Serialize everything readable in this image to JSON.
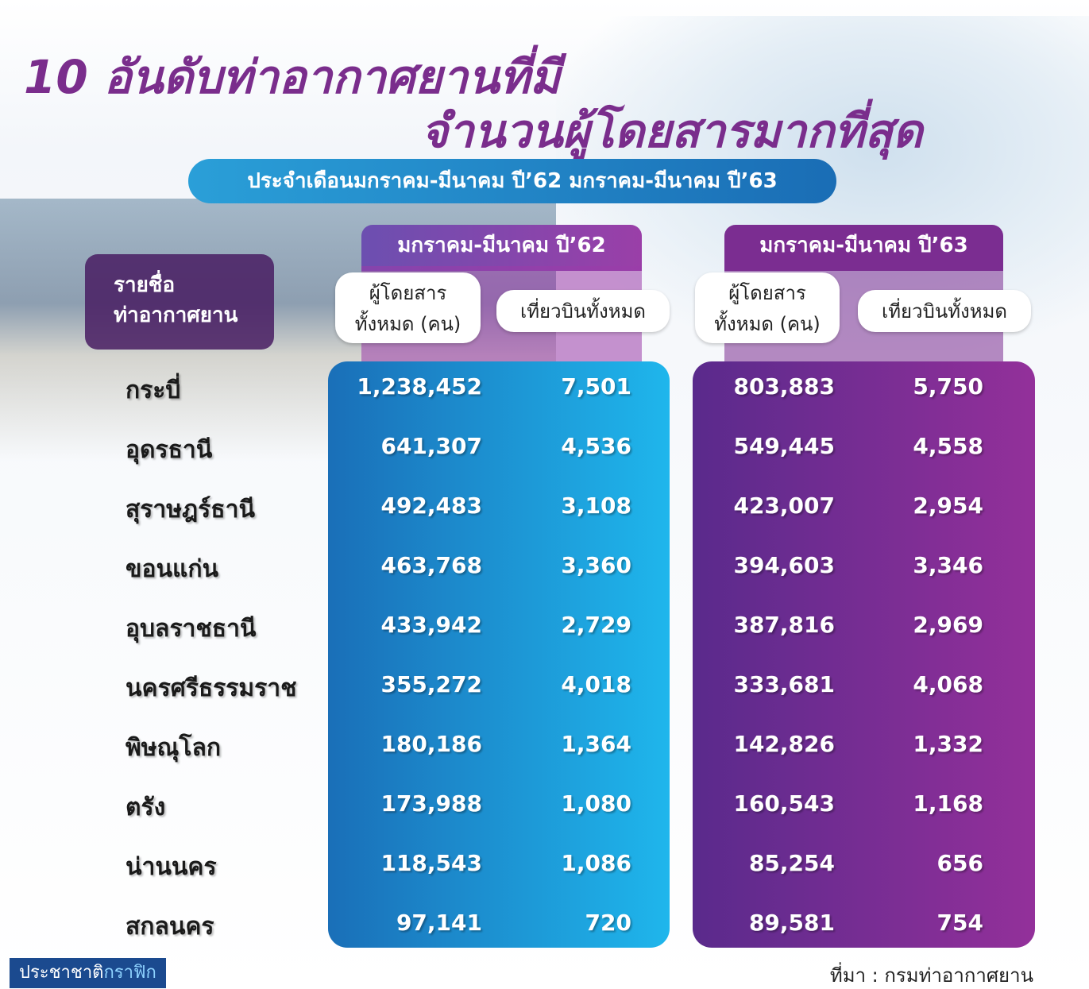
{
  "header": {
    "title_lines": [
      "10 อันดับท่าอากาศยานที่มี",
      "จำนวนผู้โดยสารมากที่สุด"
    ],
    "subtitle": "ประจำเดือนมกราคม-มีนาคม ปี’62 มกราคม-มีนาคม ปี’63"
  },
  "table": {
    "row_header": [
      "รายชื่อ",
      "ท่าอากาศยาน"
    ],
    "groups": [
      {
        "label": "มกราคม-มีนาคม ปี’62",
        "columns": [
          [
            "ผู้โดยสาร",
            "ทั้งหมด (คน)"
          ],
          [
            "เที่ยวบินทั้งหมด"
          ]
        ]
      },
      {
        "label": "มกราคม-มีนาคม ปี’63",
        "columns": [
          [
            "ผู้โดยสาร",
            "ทั้งหมด (คน)"
          ],
          [
            "เที่ยวบินทั้งหมด"
          ]
        ]
      }
    ],
    "rows": [
      [
        "กระบี่",
        "1,238,452",
        "7,501",
        "803,883",
        "5,750"
      ],
      [
        "อุดรธานี",
        "641,307",
        "4,536",
        "549,445",
        "4,558"
      ],
      [
        "สุราษฎร์ธานี",
        "492,483",
        "3,108",
        "423,007",
        "2,954"
      ],
      [
        "ขอนแก่น",
        "463,768",
        "3,360",
        "394,603",
        "3,346"
      ],
      [
        "อุบลราชธานี",
        "433,942",
        "2,729",
        "387,816",
        "2,969"
      ],
      [
        "นครศรีธรรมราช",
        "355,272",
        "4,018",
        "333,681",
        "4,068"
      ],
      [
        "พิษณุโลก",
        "180,186",
        "1,364",
        "142,826",
        "1,332"
      ],
      [
        "ตรัง",
        "173,988",
        "1,080",
        "160,543",
        "1,168"
      ],
      [
        "น่านนคร",
        "118,543",
        "1,086",
        "85,254",
        "656"
      ],
      [
        "สกลนคร",
        "97,141",
        "720",
        "89,581",
        "754"
      ]
    ]
  },
  "footer": {
    "brand": [
      "ประชาชาติ",
      "กราฟิก"
    ],
    "source": "ที่มา : กรมท่าอากาศยาน"
  }
}
